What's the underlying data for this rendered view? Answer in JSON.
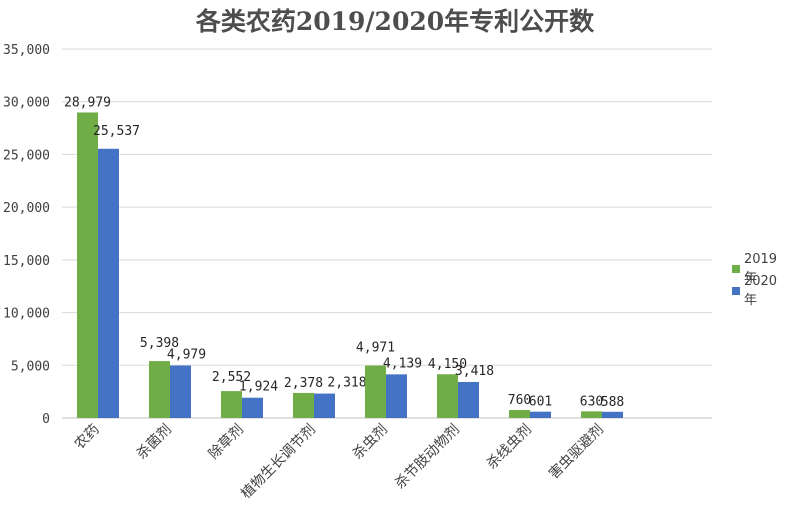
{
  "colors": {
    "s2019": "#70ad47",
    "s2020": "#4472c4"
  },
  "chart_data": {
    "type": "bar",
    "title": "各类农药2019/2020年专利公开数",
    "xlabel": "",
    "ylabel": "",
    "ylim": [
      0,
      35000
    ],
    "yticks": [
      "0",
      "5,000",
      "10,000",
      "15,000",
      "20,000",
      "25,000",
      "30,000",
      "35,000"
    ],
    "categories": [
      "农药",
      "杀菌剂",
      "除草剂",
      "植物生长调节剂",
      "杀虫剂",
      "杀节肢动物剂",
      "杀线虫剂",
      "害虫驱避剂"
    ],
    "series": [
      {
        "name": "2019年",
        "values": [
          28979,
          5398,
          2552,
          2378,
          4971,
          4150,
          760,
          630
        ],
        "labels": [
          "28,979",
          "5,398",
          "2,552",
          "2,378",
          "4,971",
          "4,150",
          "760",
          "630"
        ]
      },
      {
        "name": "2020年",
        "values": [
          25537,
          4979,
          1924,
          2318,
          4139,
          3418,
          601,
          588
        ],
        "labels": [
          "25,537",
          "4,979",
          "1,924",
          "2,318",
          "4,139",
          "3,418",
          "601",
          "588"
        ]
      }
    ],
    "grid": true,
    "legend": "right"
  }
}
